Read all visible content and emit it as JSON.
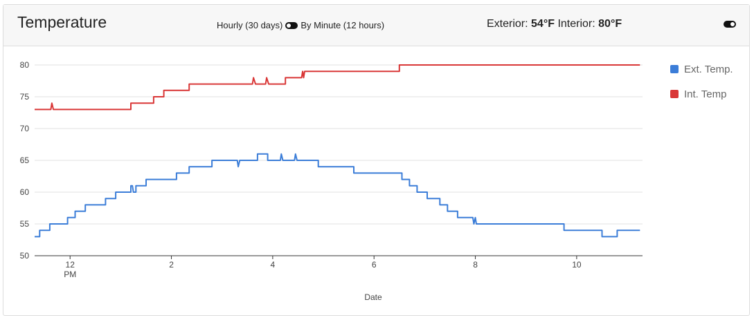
{
  "header": {
    "title": "Temperature",
    "mode_left": "Hourly (30 days)",
    "mode_right": "By Minute (12 hours)",
    "exterior_label": "Exterior:",
    "exterior_value": "54°F",
    "interior_label": "Interior:",
    "interior_value": "80°F"
  },
  "chart_data": {
    "type": "line",
    "xlabel": "Date",
    "ylabel": "",
    "ylim": [
      50,
      80
    ],
    "yticks": [
      50,
      55,
      60,
      65,
      70,
      75,
      80
    ],
    "xlim": [
      11.3,
      23.3
    ],
    "xticks": [
      {
        "x": 12,
        "label": "12",
        "sub": "PM"
      },
      {
        "x": 14,
        "label": "2",
        "sub": ""
      },
      {
        "x": 16,
        "label": "4",
        "sub": ""
      },
      {
        "x": 18,
        "label": "6",
        "sub": ""
      },
      {
        "x": 20,
        "label": "8",
        "sub": ""
      },
      {
        "x": 22,
        "label": "10",
        "sub": ""
      }
    ],
    "grid": true,
    "legend_position": "right",
    "series": [
      {
        "name": "Ext. Temp.",
        "color": "#3b7dd8",
        "points": [
          [
            11.3,
            53
          ],
          [
            11.4,
            53
          ],
          [
            11.4,
            54
          ],
          [
            11.6,
            54
          ],
          [
            11.6,
            55
          ],
          [
            11.95,
            55
          ],
          [
            11.95,
            56
          ],
          [
            12.1,
            56
          ],
          [
            12.1,
            57
          ],
          [
            12.3,
            57
          ],
          [
            12.3,
            58
          ],
          [
            12.7,
            58
          ],
          [
            12.7,
            59
          ],
          [
            12.9,
            59
          ],
          [
            12.9,
            60
          ],
          [
            13.2,
            60
          ],
          [
            13.2,
            61
          ],
          [
            13.23,
            61
          ],
          [
            13.25,
            60
          ],
          [
            13.3,
            60
          ],
          [
            13.3,
            61
          ],
          [
            13.5,
            61
          ],
          [
            13.5,
            62
          ],
          [
            14.1,
            62
          ],
          [
            14.1,
            63
          ],
          [
            14.35,
            63
          ],
          [
            14.35,
            64
          ],
          [
            14.8,
            64
          ],
          [
            14.8,
            65
          ],
          [
            15.3,
            65
          ],
          [
            15.32,
            64
          ],
          [
            15.35,
            65
          ],
          [
            15.7,
            65
          ],
          [
            15.7,
            66
          ],
          [
            15.9,
            66
          ],
          [
            15.9,
            65
          ],
          [
            16.15,
            65
          ],
          [
            16.17,
            66
          ],
          [
            16.2,
            65
          ],
          [
            16.43,
            65
          ],
          [
            16.45,
            66
          ],
          [
            16.48,
            65
          ],
          [
            16.9,
            65
          ],
          [
            16.9,
            64
          ],
          [
            17.6,
            64
          ],
          [
            17.6,
            63
          ],
          [
            18.55,
            63
          ],
          [
            18.55,
            62
          ],
          [
            18.7,
            62
          ],
          [
            18.7,
            61
          ],
          [
            18.85,
            61
          ],
          [
            18.85,
            60
          ],
          [
            19.05,
            60
          ],
          [
            19.05,
            59
          ],
          [
            19.3,
            59
          ],
          [
            19.3,
            58
          ],
          [
            19.45,
            58
          ],
          [
            19.45,
            57
          ],
          [
            19.65,
            57
          ],
          [
            19.65,
            56
          ],
          [
            19.95,
            56
          ],
          [
            19.97,
            55
          ],
          [
            20.0,
            56
          ],
          [
            20.02,
            55
          ],
          [
            21.75,
            55
          ],
          [
            21.75,
            54
          ],
          [
            22.5,
            54
          ],
          [
            22.5,
            53
          ],
          [
            22.8,
            53
          ],
          [
            22.8,
            54
          ],
          [
            23.25,
            54
          ]
        ]
      },
      {
        "name": "Int. Temp",
        "color": "#d93636",
        "points": [
          [
            11.3,
            73
          ],
          [
            11.62,
            73
          ],
          [
            11.64,
            74
          ],
          [
            11.67,
            73
          ],
          [
            13.2,
            73
          ],
          [
            13.2,
            74
          ],
          [
            13.65,
            74
          ],
          [
            13.65,
            75
          ],
          [
            13.85,
            75
          ],
          [
            13.85,
            76
          ],
          [
            14.35,
            76
          ],
          [
            14.35,
            77
          ],
          [
            15.6,
            77
          ],
          [
            15.62,
            78
          ],
          [
            15.66,
            77
          ],
          [
            15.86,
            77
          ],
          [
            15.88,
            78
          ],
          [
            15.92,
            77
          ],
          [
            16.25,
            77
          ],
          [
            16.25,
            78
          ],
          [
            16.57,
            78
          ],
          [
            16.59,
            79
          ],
          [
            16.61,
            78
          ],
          [
            16.63,
            79
          ],
          [
            18.5,
            79
          ],
          [
            18.5,
            80
          ],
          [
            23.25,
            80
          ]
        ]
      }
    ]
  }
}
